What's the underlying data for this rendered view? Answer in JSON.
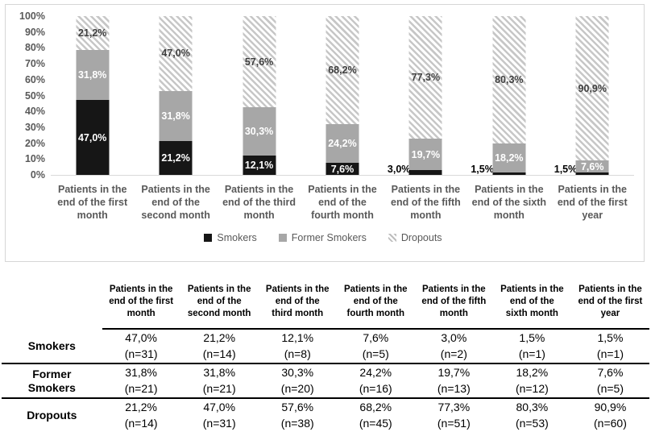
{
  "chart_data": {
    "type": "bar",
    "subtype": "stacked-100-percent",
    "title": "",
    "xlabel": "",
    "ylabel": "",
    "ylim": [
      0,
      100
    ],
    "y_ticks": [
      "100%",
      "90%",
      "80%",
      "70%",
      "60%",
      "50%",
      "40%",
      "30%",
      "20%",
      "10%",
      "0%"
    ],
    "grid": false,
    "legend_position": "bottom",
    "categories": [
      "Patients in the\nend of the first\nmonth",
      "Patients in the\nend of the\nsecond month",
      "Patients in the\nend of the third\nmonth",
      "Patients in the\nend of the\nfourth month",
      "Patients in the\nend of the fifth\nmonth",
      "Patients in the\nend of the sixth\nmonth",
      "Patients in the\nend of the first\nyear"
    ],
    "series": [
      {
        "name": "Smokers",
        "color": "#161616",
        "fill": "solid-black",
        "values": [
          47.0,
          21.2,
          12.1,
          7.6,
          3.0,
          1.5,
          1.5
        ],
        "labels": [
          "47,0%",
          "21,2%",
          "12,1%",
          "7,6%",
          "3,0%",
          "1,5%",
          "1,5%"
        ],
        "labels_outside": [
          false,
          false,
          false,
          false,
          true,
          true,
          true
        ]
      },
      {
        "name": "Former Smokers",
        "color": "#a7a7a7",
        "fill": "solid-gray",
        "values": [
          31.8,
          31.8,
          30.3,
          24.2,
          19.7,
          18.2,
          7.6
        ],
        "labels": [
          "31,8%",
          "31,8%",
          "30,3%",
          "24,2%",
          "19,7%",
          "18,2%",
          "7,6%"
        ],
        "labels_outside": [
          false,
          false,
          false,
          false,
          false,
          false,
          false
        ]
      },
      {
        "name": "Dropouts",
        "color": "#c7c7c7",
        "fill": "diagonal-hatch",
        "values": [
          21.2,
          47.0,
          57.6,
          68.2,
          77.3,
          80.3,
          90.9
        ],
        "labels": [
          "21,2%",
          "47,0%",
          "57,6%",
          "68,2%",
          "77,3%",
          "80,3%",
          "90,9%"
        ],
        "labels_outside": [
          false,
          false,
          false,
          false,
          false,
          false,
          false
        ]
      }
    ],
    "legend": [
      {
        "label": "Smokers",
        "swatch": "sw-black"
      },
      {
        "label": "Former Smokers",
        "swatch": "sw-gray"
      },
      {
        "label": "Dropouts",
        "swatch": "sw-hatch"
      }
    ]
  },
  "table": {
    "corner_label": "",
    "col_headers": [
      "Patients in the\nend of the first\nmonth",
      "Patients in the\nend of the\nsecond month",
      "Patients in the\nend of the\nthird month",
      "Patients in the\nend of the\nfourth month",
      "Patients in the\nend of the fifth\nmonth",
      "Patients in the\nend of the\nsixth month",
      "Patients in the\nend of the first\nyear"
    ],
    "rows": [
      {
        "label": "Smokers",
        "cells": [
          "47,0%\n(n=31)",
          "21,2%\n(n=14)",
          "12,1%\n(n=8)",
          "7,6%\n(n=5)",
          "3,0%\n(n=2)",
          "1,5%\n(n=1)",
          "1,5%\n(n=1)"
        ]
      },
      {
        "label": "Former\nSmokers",
        "cells": [
          "31,8%\n(n=21)",
          "31,8%\n(n=21)",
          "30,3%\n(n=20)",
          "24,2%\n(n=16)",
          "19,7%\n(n=13)",
          "18,2%\n(n=12)",
          "7,6%\n(n=5)"
        ]
      },
      {
        "label": "Dropouts",
        "cells": [
          "21,2%\n(n=14)",
          "47,0%\n(n=31)",
          "57,6%\n(n=38)",
          "68,2%\n(n=45)",
          "77,3%\n(n=51)",
          "80,3%\n(n=53)",
          "90,9%\n(n=60)"
        ]
      }
    ]
  },
  "colors": {
    "smokers": "#161616",
    "former_smokers": "#a7a7a7",
    "hatch_line": "#c7c7c7",
    "axis_text": "#595959",
    "panel_border": "#d6d6d6",
    "axis_line": "#d9d9d9",
    "table_rule": "#000000"
  }
}
